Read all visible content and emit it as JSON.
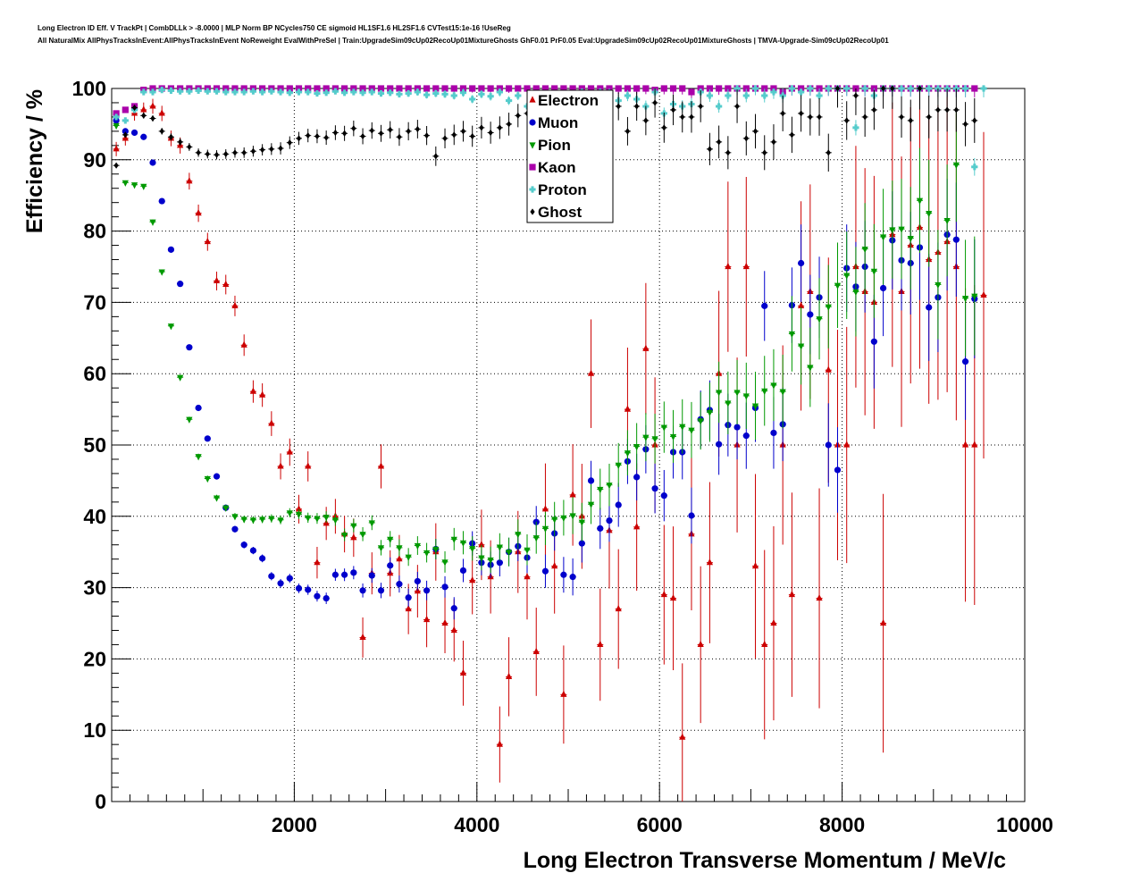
{
  "header": {
    "line1": "Long Electron ID Eff. V TrackPt | CombDLLk > -8.0000 | MLP Norm BP NCycles750 CE sigmoid HL1SF1.6 HL2SF1.6 CVTest15:1e-16 !UseReg",
    "line2": "All NaturalMix AllPhysTracksInEvent:AllPhysTracksInEvent NoReweight EvalWithPreSel | Train:UpgradeSim09cUp02RecoUp01MixtureGhosts GhF0.01 PrF0.05 Eval:UpgradeSim09cUp02RecoUp01MixtureGhosts | TMVA-Upgrade-Sim09cUp02RecoUp01"
  },
  "chart_data": {
    "type": "scatter",
    "title": "",
    "xlabel": "Long Electron Transverse Momentum / MeV/c",
    "ylabel": "Efficiency / %",
    "xlim": [
      0,
      10000
    ],
    "ylim": [
      0,
      100
    ],
    "xticks": [
      2000,
      4000,
      6000,
      8000,
      10000
    ],
    "yticks": [
      0,
      10,
      20,
      30,
      40,
      50,
      60,
      70,
      80,
      90,
      100
    ],
    "grid": true,
    "legend_position": "top-center",
    "bin_width": 100,
    "x_start": 50,
    "series": [
      {
        "name": "Electron",
        "marker": "triangle-up",
        "color": "#cc0000",
        "values": [
          91.5,
          93,
          96.5,
          97,
          97.5,
          96.5,
          93,
          92,
          87,
          82.5,
          78.5,
          73,
          72.5,
          69.5,
          64,
          57.5,
          57,
          53,
          47,
          49,
          41,
          47,
          33.5,
          39,
          40,
          37.5,
          37,
          23,
          32,
          47,
          32,
          34,
          27,
          29.5,
          25.5,
          35,
          25,
          24,
          18,
          31,
          36,
          31.5,
          8,
          17.5,
          35,
          31.5,
          21,
          41,
          33,
          15,
          43,
          40,
          60,
          22,
          38,
          27,
          55,
          38.5,
          63.5,
          50,
          29,
          28.5,
          9,
          37.5,
          22,
          33.5,
          60,
          75,
          50,
          75,
          33,
          22,
          25,
          50,
          29,
          69.5,
          71.5,
          28.5,
          60.5,
          50,
          50,
          75,
          71.5,
          70,
          25,
          79.5,
          71.5,
          78,
          80.5,
          76,
          77,
          78.5,
          75,
          50,
          50,
          71
        ]
      },
      {
        "name": "Muon",
        "marker": "circle",
        "color": "#0000cc",
        "values": [
          95.5,
          94,
          93.8,
          93.2,
          89.6,
          84.2,
          77.4,
          72.6,
          63.7,
          55.2,
          50.9,
          45.6,
          41.2,
          38.2,
          36,
          35.2,
          34.1,
          31.6,
          30.6,
          31.3,
          29.9,
          29.7,
          28.8,
          28.5,
          31.8,
          31.8,
          32.1,
          29.6,
          31.7,
          29.6,
          33.1,
          30.5,
          28.6,
          30.9,
          29.6,
          35.4,
          30.1,
          27.1,
          32.4,
          36.2,
          33.5,
          33.2,
          33.5,
          35,
          35.8,
          34.2,
          39.2,
          32.3,
          37.6,
          31.8,
          31.5,
          36.2,
          45,
          38.3,
          39.4,
          41.6,
          47.7,
          45.5,
          49.4,
          43.9,
          42.9,
          49,
          49,
          40.1,
          53.6,
          54.9,
          50.1,
          52.8,
          52.5,
          51.3,
          55.2,
          69.5,
          51.7,
          52.9,
          69.6,
          75.5,
          68.3,
          70.7,
          50,
          46.5,
          74.8,
          72.2,
          75,
          64.5,
          72,
          78.7,
          75.9,
          75.5,
          77.7,
          69.3,
          70.7,
          79.5,
          78.8,
          61.7,
          70.5
        ]
      },
      {
        "name": "Pion",
        "marker": "triangle-down",
        "color": "#009900",
        "values": [
          94.8,
          86.8,
          86.5,
          86.3,
          81.3,
          74.3,
          66.7,
          59.5,
          53.6,
          48.4,
          45.3,
          42.6,
          41.2,
          40,
          39.6,
          39.5,
          39.6,
          39.7,
          39.5,
          40.5,
          40.3,
          39.8,
          39.7,
          39.9,
          39.5,
          37.4,
          38.7,
          37.5,
          39.1,
          35.6,
          36.8,
          35.6,
          34.3,
          35.9,
          34.9,
          35.4,
          33.6,
          36.8,
          36.3,
          35.5,
          34.2,
          33.9,
          35.7,
          35,
          37.5,
          35.3,
          37,
          38.3,
          39.6,
          39.8,
          40.1,
          39.2,
          41.7,
          43.8,
          44.4,
          47.2,
          48.9,
          49.8,
          51.1,
          50.9,
          52.5,
          51.2,
          52.6,
          52.1,
          53.4,
          54.6,
          57.4,
          55.9,
          57.4,
          56.9,
          55.5,
          57.6,
          58.4,
          57.5,
          65.6,
          63.9,
          60.9,
          67.7,
          69.4,
          72.4,
          73.8,
          71.5,
          77.5,
          74.4,
          79.2,
          80.2,
          80.3,
          79,
          84.3,
          82.5,
          72.5,
          81.5,
          89.3,
          70.6,
          70.9
        ]
      },
      {
        "name": "Kaon",
        "marker": "square",
        "color": "#aa00aa",
        "values": [
          96.5,
          97,
          97.5,
          99.8,
          100,
          100,
          100,
          100,
          100,
          100,
          100,
          100,
          100,
          100,
          100,
          100,
          100,
          100,
          100,
          100,
          100,
          100,
          100,
          100,
          100,
          100,
          100,
          100,
          100,
          100,
          100,
          100,
          100,
          100,
          100,
          100,
          100,
          100,
          100,
          100,
          100,
          100,
          100,
          100,
          100,
          100,
          100,
          100,
          100,
          100,
          100,
          100,
          100,
          100,
          100,
          100,
          100,
          100,
          100,
          99.8,
          100,
          100,
          100,
          99.5,
          100,
          100,
          100,
          100,
          100,
          100,
          100,
          100,
          100,
          99.5,
          100,
          100,
          100,
          100,
          100,
          100,
          100,
          100,
          100,
          100,
          100,
          100,
          100,
          100,
          100,
          100,
          100,
          100,
          100,
          100,
          100
        ]
      },
      {
        "name": "Proton",
        "marker": "cross",
        "color": "#55cccc",
        "values": [
          96,
          95.5,
          97,
          99.5,
          99.5,
          99.8,
          99.7,
          99.6,
          99.6,
          99.7,
          99.6,
          99.6,
          99.5,
          99.5,
          99.5,
          99.6,
          99.5,
          99.6,
          99.5,
          99.4,
          99.5,
          99.5,
          99.3,
          99.4,
          99.6,
          99.4,
          99.5,
          99.4,
          99.5,
          99.3,
          99.4,
          99.2,
          99.3,
          99.5,
          99.1,
          99.3,
          99.2,
          99,
          99.4,
          98.5,
          99.2,
          98.9,
          99.5,
          98.3,
          99,
          97.5,
          98.5,
          99,
          98.2,
          97.5,
          99,
          99.5,
          98.5,
          99.5,
          99.4,
          98.3,
          99,
          98.5,
          97.5,
          99.5,
          96.5,
          97.8,
          97.5,
          97.8,
          99.5,
          99,
          97.5,
          99,
          100,
          99,
          100,
          99,
          99.5,
          99,
          100,
          99.5,
          100,
          99,
          100,
          100,
          100,
          94.5,
          100,
          99,
          100,
          100,
          100,
          100,
          100,
          100,
          100,
          100,
          100,
          100,
          89,
          100
        ]
      },
      {
        "name": "Ghost",
        "marker": "diamond",
        "color": "#000000",
        "values": [
          89.2,
          93.5,
          97.3,
          96.2,
          95.8,
          94,
          93.2,
          92.5,
          91.8,
          91,
          90.8,
          90.7,
          90.8,
          91,
          91,
          91.2,
          91.4,
          91.5,
          91.6,
          92.4,
          93,
          93.4,
          93.3,
          93.1,
          93.8,
          93.7,
          94.4,
          93.3,
          94.1,
          93.7,
          94.2,
          93.2,
          94,
          94.3,
          93.4,
          90.5,
          93,
          93.5,
          94,
          93.3,
          94.5,
          93.8,
          94.5,
          95,
          96.2,
          96.5,
          95,
          95.5,
          96.5,
          96,
          94.5,
          96,
          96,
          97,
          96.5,
          97.5,
          94,
          97.5,
          95.5,
          98,
          94.5,
          97,
          96,
          96,
          97.5,
          91.5,
          92.5,
          91,
          97.5,
          93,
          94,
          91,
          92.5,
          96.5,
          93.5,
          96.5,
          96,
          96,
          91,
          100,
          95.5,
          99,
          96,
          97,
          100,
          100,
          96,
          95.5,
          100,
          96,
          97,
          97,
          97,
          95,
          95.5
        ]
      }
    ]
  }
}
